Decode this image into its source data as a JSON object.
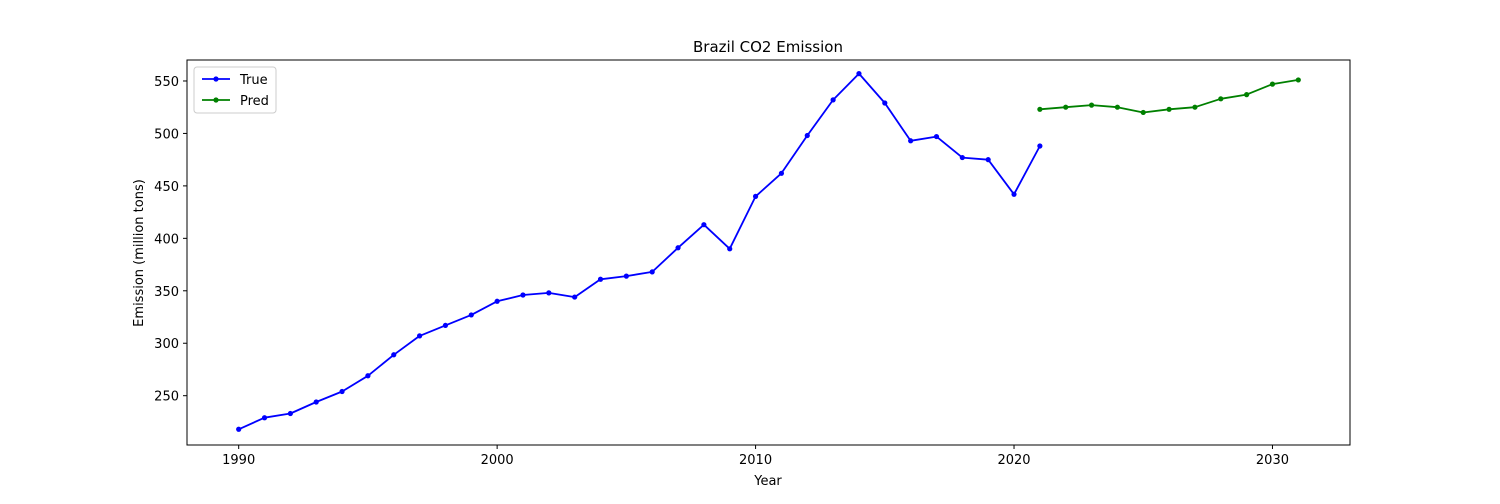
{
  "chart_data": {
    "type": "line",
    "title": "Brazil CO2 Emission",
    "xlabel": "Year",
    "ylabel": "Emission (million tons)",
    "xlim": [
      1988,
      2033
    ],
    "ylim": [
      203,
      570
    ],
    "x_ticks": [
      1990,
      2000,
      2010,
      2020,
      2030
    ],
    "y_ticks": [
      250,
      300,
      350,
      400,
      450,
      500,
      550
    ],
    "grid": false,
    "legend_position": "top-left",
    "series": [
      {
        "name": "True",
        "color": "#0000ff",
        "x": [
          1990,
          1991,
          1992,
          1993,
          1994,
          1995,
          1996,
          1997,
          1998,
          1999,
          2000,
          2001,
          2002,
          2003,
          2004,
          2005,
          2006,
          2007,
          2008,
          2009,
          2010,
          2011,
          2012,
          2013,
          2014,
          2015,
          2016,
          2017,
          2018,
          2019,
          2020,
          2021
        ],
        "y": [
          218,
          229,
          233,
          244,
          254,
          269,
          289,
          307,
          317,
          327,
          340,
          346,
          348,
          344,
          361,
          364,
          368,
          391,
          413,
          390,
          440,
          462,
          498,
          532,
          557,
          529,
          493,
          497,
          477,
          475,
          442,
          488
        ]
      },
      {
        "name": "Pred",
        "color": "#008000",
        "x": [
          2021,
          2022,
          2023,
          2024,
          2025,
          2026,
          2027,
          2028,
          2029,
          2030,
          2031
        ],
        "y": [
          523,
          525,
          527,
          525,
          520,
          523,
          525,
          533,
          537,
          547,
          551
        ]
      }
    ]
  }
}
